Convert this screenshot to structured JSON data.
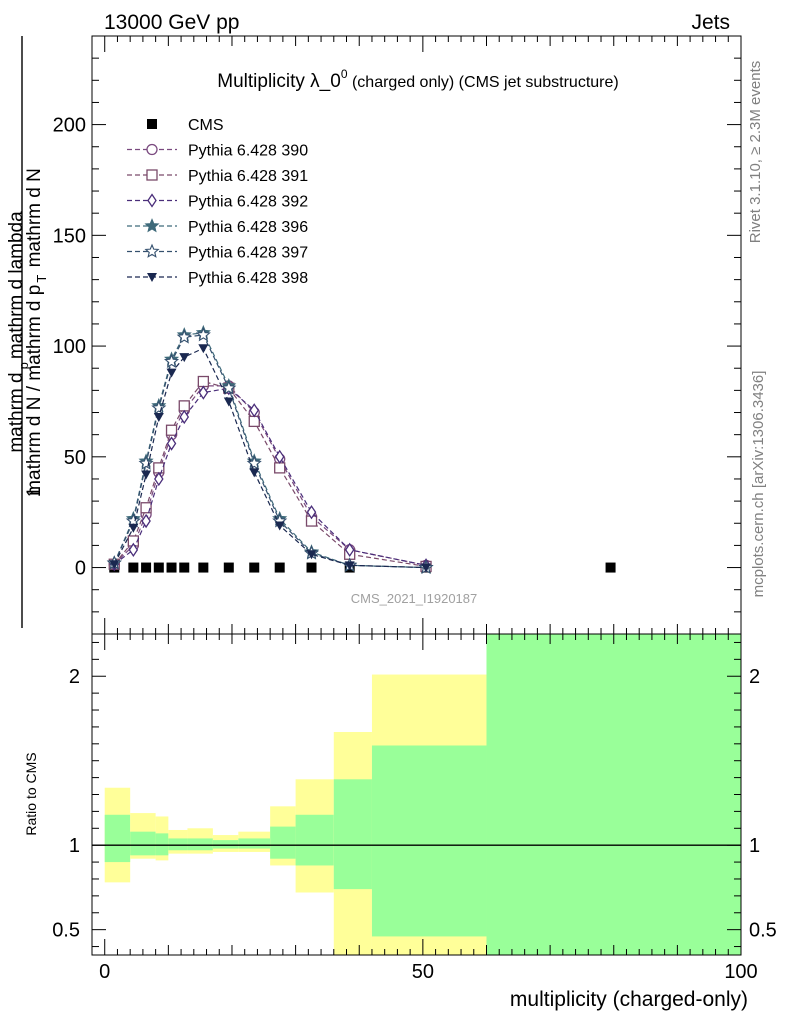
{
  "header": {
    "left": "13000 GeV pp",
    "right": "Jets"
  },
  "side_labels": {
    "rivet": "Rivet 3.1.10, ≥ 2.3M events",
    "mcplots": "mcplots.cern.ch [arXiv:1306.3436]"
  },
  "chart_data": [
    {
      "type": "scatter",
      "title": "Multiplicity λ_0",
      "title_sup": "0",
      "title_suffix": " (charged only) (CMS jet substructure)",
      "watermark": "CMS_2021_I1920187",
      "ylabel_numerator": "1",
      "ylabel_denominator": "mathrm d N / mathrm d p",
      "ylabel_denominator_sub": "T",
      "ylabel_denominator_tail": " mathrm d N",
      "ylabel_top": "mathrm d",
      "ylabel_top_sub": "p",
      "ylabel_top_tail": "mathrm d lambda",
      "xlim": [
        -2,
        100
      ],
      "ylim": [
        -30,
        240
      ],
      "yticks": [
        0,
        50,
        100,
        150,
        200
      ],
      "legend_placement": "top-left",
      "series": [
        {
          "name": "CMS",
          "color": "#000000",
          "marker": "square-filled",
          "dashed": false,
          "x": [
            1.5,
            4.5,
            6.5,
            8.5,
            10.5,
            12.5,
            15.5,
            19.5,
            23.5,
            27.5,
            32.5,
            38.5,
            50.5,
            79.5
          ],
          "y": [
            0,
            0,
            0,
            0,
            0,
            0,
            0,
            0,
            0,
            0,
            0,
            0,
            0,
            0
          ]
        },
        {
          "name": "Pythia 6.428 390",
          "color": "#7a4a7f",
          "marker": "circle-open",
          "dashed": true,
          "x": [
            1.5,
            4.5,
            6.5,
            8.5,
            10.5,
            12.5,
            15.5,
            19.5,
            23.5,
            27.5,
            32.5,
            38.5,
            50.5
          ],
          "y": [
            1.5,
            10,
            24,
            43,
            60,
            71,
            82,
            82,
            70,
            49,
            23,
            8,
            1
          ]
        },
        {
          "name": "Pythia 6.428 391",
          "color": "#7a4a6a",
          "marker": "square-open",
          "dashed": true,
          "x": [
            1.5,
            4.5,
            6.5,
            8.5,
            10.5,
            12.5,
            15.5,
            19.5,
            23.5,
            27.5,
            32.5,
            38.5,
            50.5
          ],
          "y": [
            1.5,
            12,
            27,
            45,
            62,
            73,
            84,
            81,
            66,
            45,
            21,
            6,
            0.5
          ]
        },
        {
          "name": "Pythia 6.428 392",
          "color": "#4a2e7a",
          "marker": "diamond-open",
          "dashed": true,
          "x": [
            1.5,
            4.5,
            6.5,
            8.5,
            10.5,
            12.5,
            15.5,
            19.5,
            23.5,
            27.5,
            32.5,
            38.5,
            50.5
          ],
          "y": [
            1.5,
            8,
            21,
            40,
            56,
            68,
            79,
            81,
            71,
            50,
            25,
            8,
            1
          ]
        },
        {
          "name": "Pythia 6.428 396",
          "color": "#3f6a7a",
          "marker": "star-filled",
          "dashed": true,
          "x": [
            1.5,
            4.5,
            6.5,
            8.5,
            10.5,
            12.5,
            15.5,
            19.5,
            23.5,
            27.5,
            32.5,
            38.5,
            50.5
          ],
          "y": [
            2,
            22,
            48,
            73,
            94,
            105,
            106,
            82,
            48,
            22,
            7,
            1,
            0
          ]
        },
        {
          "name": "Pythia 6.428 397",
          "color": "#34506e",
          "marker": "star-open",
          "dashed": true,
          "x": [
            1.5,
            4.5,
            6.5,
            8.5,
            10.5,
            12.5,
            15.5,
            19.5,
            23.5,
            27.5,
            32.5,
            38.5,
            50.5
          ],
          "y": [
            2,
            21,
            47,
            72,
            93,
            104,
            105,
            81,
            47,
            21,
            6.5,
            1,
            0
          ]
        },
        {
          "name": "Pythia 6.428 398",
          "color": "#1a2850",
          "marker": "triangle-down-filled",
          "dashed": true,
          "x": [
            1.5,
            4.5,
            6.5,
            8.5,
            10.5,
            12.5,
            15.5,
            19.5,
            23.5,
            27.5,
            32.5,
            38.5,
            50.5
          ],
          "y": [
            1.5,
            18,
            42,
            68,
            88,
            95,
            99,
            75,
            43,
            19,
            6,
            1,
            0
          ]
        }
      ]
    },
    {
      "type": "area",
      "ylabel": "Ratio to CMS",
      "xlabel": "multiplicity (charged-only)",
      "xlim": [
        -2,
        100
      ],
      "ylim": [
        0.35,
        2.25
      ],
      "xticks": [
        0,
        50,
        100
      ],
      "yticks": [
        0.5,
        1,
        2
      ],
      "reference_line": 1,
      "bins": [
        {
          "lo": 0,
          "hi": 4,
          "green": [
            0.9,
            1.18
          ],
          "yellow": [
            0.78,
            1.34
          ]
        },
        {
          "lo": 4,
          "hi": 8,
          "green": [
            0.94,
            1.08
          ],
          "yellow": [
            0.92,
            1.19
          ]
        },
        {
          "lo": 8,
          "hi": 10,
          "green": [
            0.94,
            1.07
          ],
          "yellow": [
            0.91,
            1.17
          ]
        },
        {
          "lo": 10,
          "hi": 13,
          "green": [
            0.97,
            1.04
          ],
          "yellow": [
            0.95,
            1.09
          ]
        },
        {
          "lo": 13,
          "hi": 17,
          "green": [
            0.97,
            1.04
          ],
          "yellow": [
            0.95,
            1.1
          ]
        },
        {
          "lo": 17,
          "hi": 21,
          "green": [
            0.98,
            1.03
          ],
          "yellow": [
            0.96,
            1.06
          ]
        },
        {
          "lo": 21,
          "hi": 26,
          "green": [
            0.98,
            1.04
          ],
          "yellow": [
            0.96,
            1.08
          ]
        },
        {
          "lo": 26,
          "hi": 30,
          "green": [
            0.92,
            1.11
          ],
          "yellow": [
            0.88,
            1.23
          ]
        },
        {
          "lo": 30,
          "hi": 36,
          "green": [
            0.88,
            1.18
          ],
          "yellow": [
            0.72,
            1.39
          ]
        },
        {
          "lo": 36,
          "hi": 42,
          "green": [
            0.74,
            1.39
          ],
          "yellow": [
            0.35,
            1.67
          ]
        },
        {
          "lo": 42,
          "hi": 60,
          "green": [
            0.46,
            1.59
          ],
          "yellow": [
            0.35,
            2.01
          ]
        },
        {
          "lo": 60,
          "hi": 100,
          "green": [
            0.35,
            2.25
          ],
          "yellow": [
            0.35,
            2.25
          ]
        }
      ]
    }
  ]
}
